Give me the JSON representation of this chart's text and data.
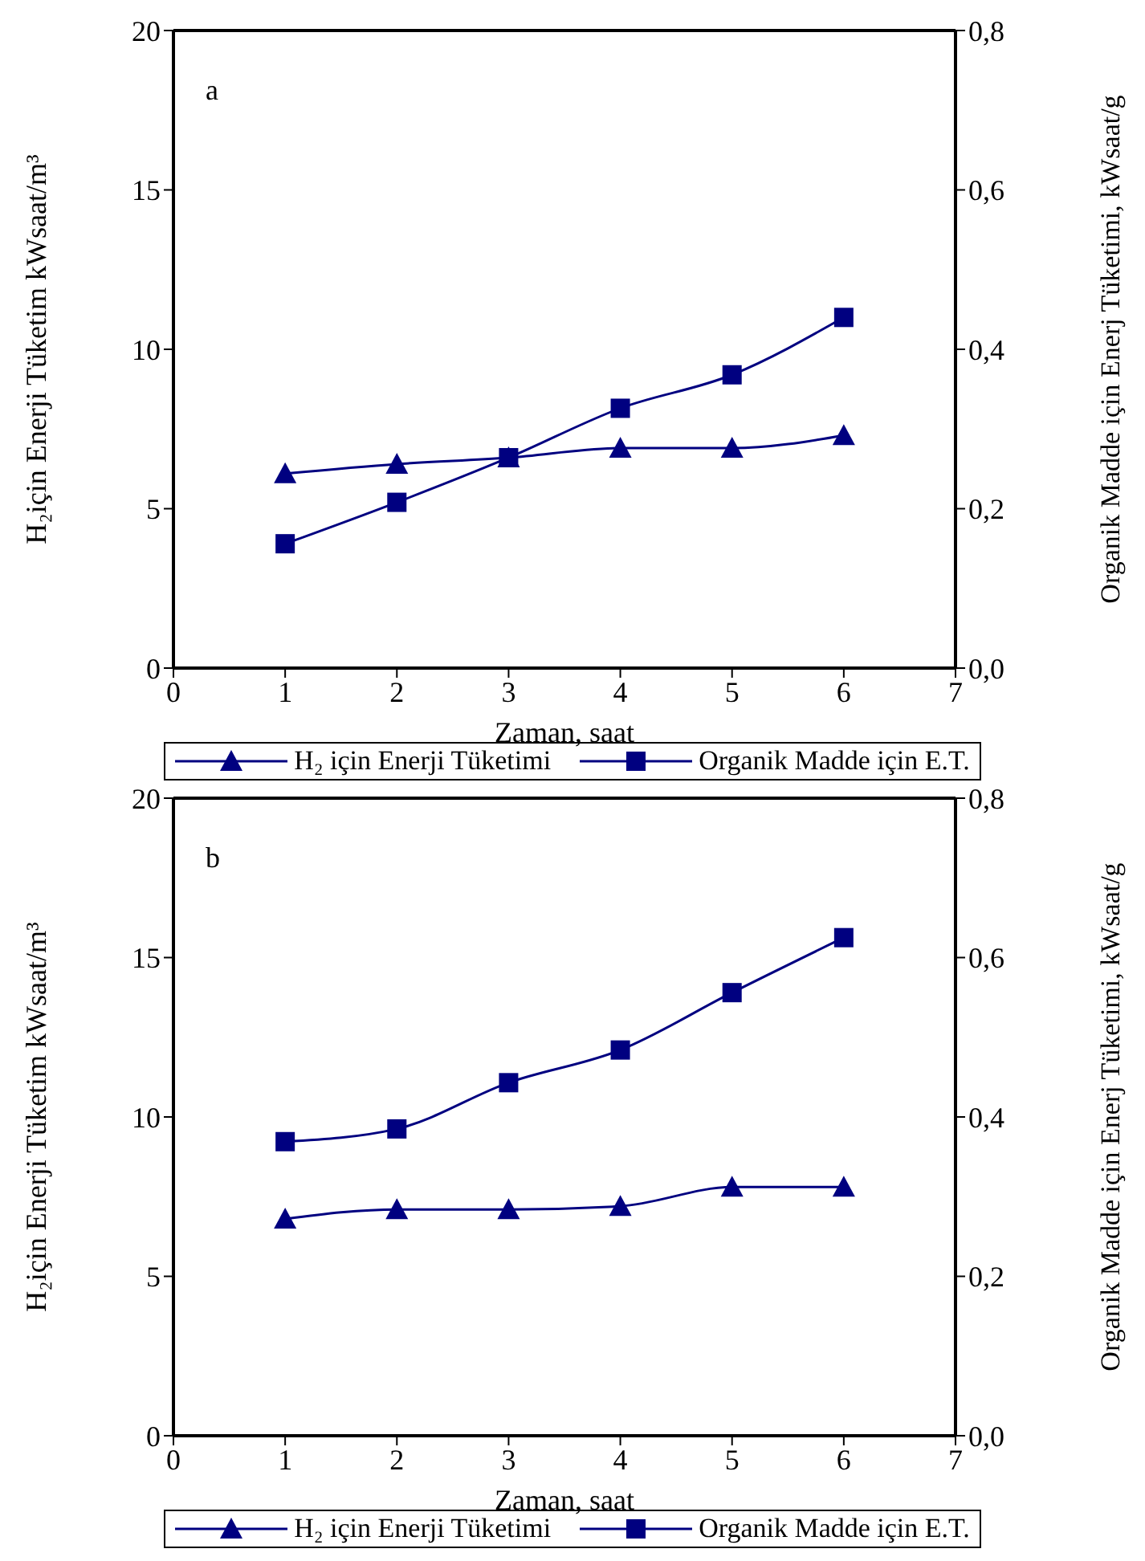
{
  "chart_data": [
    {
      "type": "line",
      "annotations": [
        "a"
      ],
      "xlabel": "Zaman, saat",
      "ylabel": "H₂için Enerji Tüketim kWsaat/m³",
      "y2label": "Organik Madde için Enerj Tüketimi, kWsaat/g",
      "x": [
        1,
        2,
        3,
        4,
        5,
        6
      ],
      "xlim": [
        0,
        7
      ],
      "xticks": [
        0,
        1,
        2,
        3,
        4,
        5,
        6,
        7
      ],
      "ylim": [
        0,
        20
      ],
      "yticks": [
        0,
        5,
        10,
        15,
        20
      ],
      "y2lim": [
        0,
        0.8
      ],
      "y2ticks": [
        {
          "value": 0,
          "label": "0,0"
        },
        {
          "value": 0.2,
          "label": "0,2"
        },
        {
          "value": 0.4,
          "label": "0,4"
        },
        {
          "value": 0.6,
          "label": "0,6"
        },
        {
          "value": 0.8,
          "label": "0,8"
        }
      ],
      "legend": "bottom",
      "grid": false,
      "series": [
        {
          "name": "H₂ için Enerji Tüketimi",
          "color": "#000080",
          "marker": "triangle",
          "values": [
            6.1,
            6.4,
            6.6,
            6.9,
            6.9,
            7.3
          ]
        },
        {
          "name": "Organik Madde için E.T.",
          "color": "#000080",
          "marker": "square",
          "axis": "y2",
          "values": [
            0.156,
            0.208,
            0.264,
            0.326,
            0.368,
            0.44
          ]
        }
      ]
    },
    {
      "type": "line",
      "annotations": [
        "b"
      ],
      "xlabel": "Zaman, saat",
      "ylabel": "H₂için Enerji Tüketim kWsaat/m³",
      "y2label": "Organik Madde için Enerj Tüketimi, kWsaat/g",
      "x": [
        1,
        2,
        3,
        4,
        5,
        6
      ],
      "xlim": [
        0,
        7
      ],
      "xticks": [
        0,
        1,
        2,
        3,
        4,
        5,
        6,
        7
      ],
      "ylim": [
        0,
        20
      ],
      "yticks": [
        0,
        5,
        10,
        15,
        20
      ],
      "y2lim": [
        0,
        0.8
      ],
      "y2ticks": [
        {
          "value": 0,
          "label": "0,0"
        },
        {
          "value": 0.2,
          "label": "0,2"
        },
        {
          "value": 0.4,
          "label": "0,4"
        },
        {
          "value": 0.6,
          "label": "0,6"
        },
        {
          "value": 0.8,
          "label": "0,8"
        }
      ],
      "legend": "bottom",
      "grid": false,
      "series": [
        {
          "name": "H₂ için Enerji Tüketimi",
          "color": "#000080",
          "marker": "triangle",
          "values": [
            6.8,
            7.1,
            7.1,
            7.2,
            7.8,
            7.8
          ]
        },
        {
          "name": "Organik Madde için E.T.",
          "color": "#000080",
          "marker": "square",
          "axis": "y2",
          "values": [
            0.369,
            0.385,
            0.443,
            0.484,
            0.556,
            0.625
          ]
        }
      ]
    }
  ]
}
